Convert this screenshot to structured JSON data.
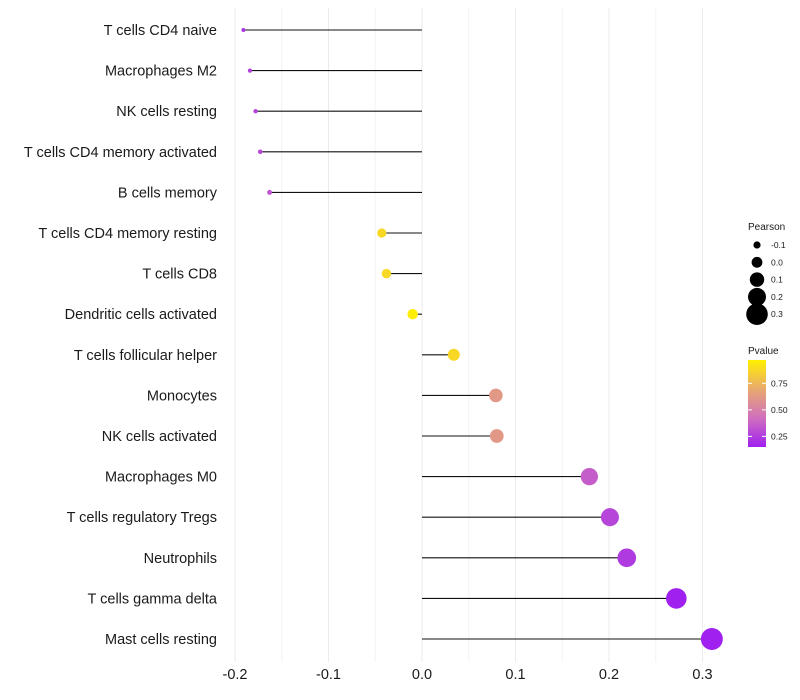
{
  "chart_data": {
    "type": "lollipop",
    "title": "",
    "xlabel": "",
    "ylabel": "",
    "xlim": [
      -0.2,
      0.31
    ],
    "x_ticks": [
      -0.2,
      -0.1,
      0.0,
      0.1,
      0.2,
      0.3
    ],
    "x_tick_labels": [
      "-0.2",
      "-0.1",
      "0.0",
      "0.1",
      "0.2",
      "0.3"
    ],
    "categories": [
      "T cells CD4 naive",
      "Macrophages M2",
      "NK cells resting",
      "T cells CD4 memory activated",
      "B cells memory",
      "T cells CD4 memory resting",
      "T cells CD8",
      "Dendritic cells activated",
      "T cells follicular helper",
      "Monocytes",
      "NK cells activated",
      "Macrophages M0",
      "T cells regulatory  Tregs ",
      "Neutrophils",
      "T cells gamma delta",
      "Mast cells resting"
    ],
    "pearson": [
      -0.191,
      -0.184,
      -0.178,
      -0.173,
      -0.163,
      -0.043,
      -0.038,
      -0.01,
      0.034,
      0.079,
      0.08,
      0.179,
      0.201,
      0.219,
      0.272,
      0.31
    ],
    "pvalue": [
      0.22,
      0.25,
      0.27,
      0.29,
      0.33,
      0.88,
      0.88,
      0.96,
      0.88,
      0.62,
      0.62,
      0.36,
      0.28,
      0.24,
      0.14,
      0.13
    ],
    "grid": true,
    "legend": {
      "position": "right",
      "size": {
        "title": "Pearson",
        "values": [
          -0.1,
          0.0,
          0.1,
          0.2,
          0.3
        ],
        "labels": [
          "-0.1",
          "0.0",
          "0.1",
          "0.2",
          "0.3"
        ]
      },
      "color": {
        "title": "Pvalue",
        "range": [
          0.15,
          0.97
        ],
        "ticks": [
          0.75,
          0.5,
          0.25
        ],
        "tick_labels": [
          "0.75",
          "0.50",
          "0.25"
        ],
        "gradient": [
          "#a020f0",
          "#cf6fbf",
          "#e9a870",
          "#fff000"
        ]
      }
    }
  }
}
